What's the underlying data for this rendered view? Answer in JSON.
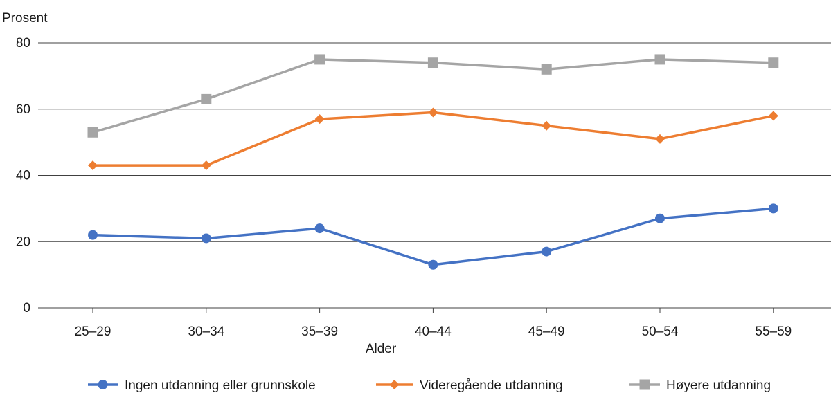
{
  "chart_data": {
    "type": "line",
    "ylabel": "Prosent",
    "xlabel": "Alder",
    "ylim": [
      0,
      80
    ],
    "yticks": [
      0,
      20,
      40,
      60,
      80
    ],
    "grid": true,
    "legend_position": "bottom",
    "categories": [
      "25–29",
      "30–34",
      "35–39",
      "40–44",
      "45–49",
      "50–54",
      "55–59"
    ],
    "series": [
      {
        "name": "Ingen utdanning eller grunnskole",
        "color": "#4472c4",
        "marker": "circle",
        "values": [
          22,
          21,
          24,
          13,
          17,
          27,
          30
        ]
      },
      {
        "name": "Videregående utdanning",
        "color": "#ed7d31",
        "marker": "diamond",
        "values": [
          43,
          43,
          57,
          59,
          55,
          51,
          58
        ]
      },
      {
        "name": "Høyere utdanning",
        "color": "#a5a5a5",
        "marker": "square",
        "values": [
          53,
          63,
          75,
          74,
          72,
          75,
          74
        ]
      }
    ]
  }
}
